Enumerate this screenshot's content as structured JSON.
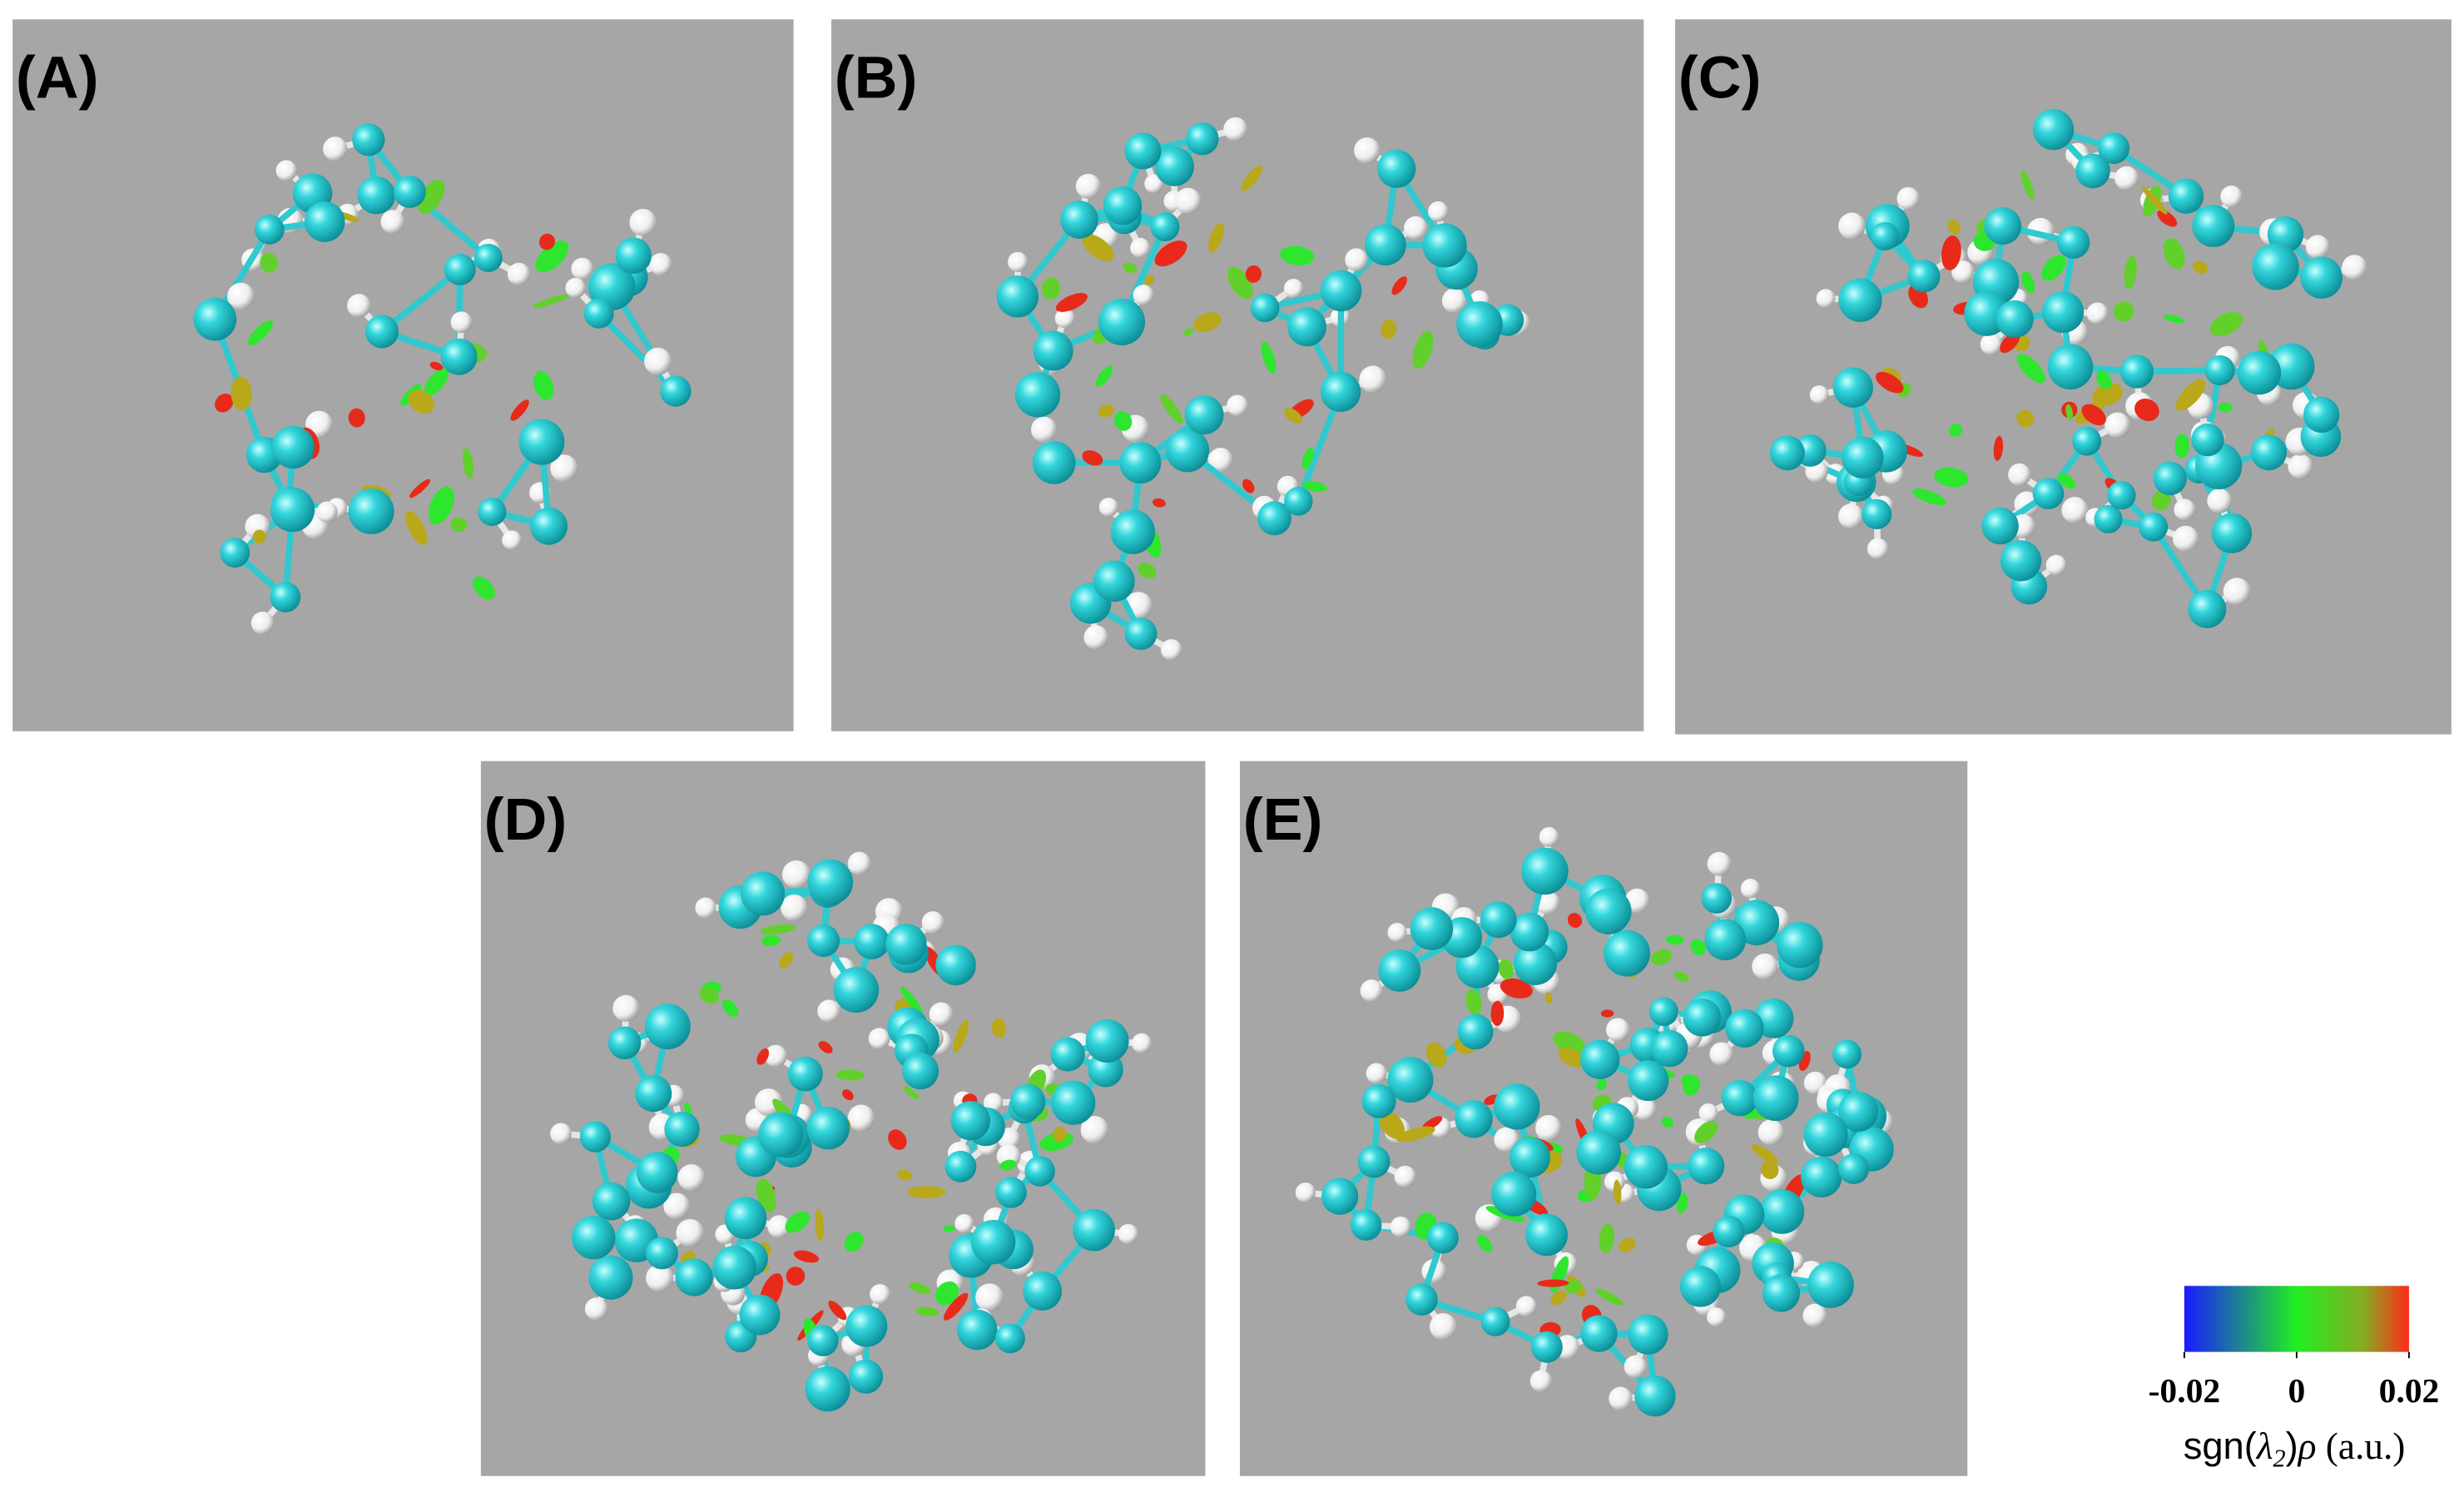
{
  "panels": [
    {
      "label": "(A)"
    },
    {
      "label": "(B)"
    },
    {
      "label": "(C)"
    },
    {
      "label": "(D)"
    },
    {
      "label": "(E)"
    }
  ],
  "colorbar": {
    "lim": [
      -0.02,
      0.02
    ],
    "ticks": [
      -0.02,
      0,
      0.02
    ],
    "label_parts": [
      "sgn(",
      "λ",
      "2",
      ")",
      "ρ",
      " (a.u.)"
    ]
  }
}
